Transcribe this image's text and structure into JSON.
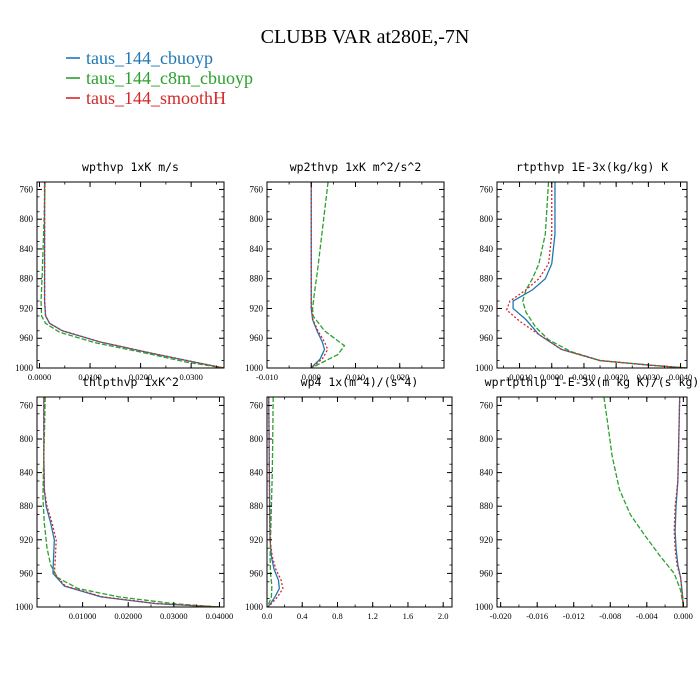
{
  "title": "CLUBB VAR at280E,-7N",
  "legend": [
    {
      "label": "taus_144_cbuoyp",
      "color": "#1f77b4"
    },
    {
      "label": "taus_144_c8m_cbuoyp",
      "color": "#2ca02c"
    },
    {
      "label": "taus_144_smoothH",
      "color": "#d62728"
    }
  ],
  "chart_data": [
    {
      "type": "line",
      "title": "wpthvp  1xK m/s",
      "xlim": [
        -0.0005,
        0.0365
      ],
      "ylim": [
        1000,
        750
      ],
      "xticks": [
        0.0,
        0.01,
        0.02,
        0.03
      ],
      "xtick_labels": [
        "0.0000",
        "0.0100",
        "0.0200",
        "0.0300"
      ],
      "yticks": [
        760,
        800,
        840,
        880,
        920,
        960,
        1000
      ],
      "ytick_labels": [
        "760",
        "800",
        "840",
        "880",
        "920",
        "960",
        "1000"
      ],
      "series": [
        {
          "name": "taus_144_cbuoyp",
          "x": [
            0.001,
            0.001,
            0.001,
            0.001,
            0.001,
            0.0012,
            0.002,
            0.0045,
            0.012,
            0.022,
            0.0305,
            0.0365
          ],
          "y": [
            750,
            800,
            840,
            880,
            910,
            930,
            940,
            950,
            965,
            980,
            992,
            1000
          ]
        },
        {
          "name": "taus_144_c8m_cbuoyp",
          "x": [
            0.0011,
            0.0009,
            0.0007,
            0.0005,
            0.0003,
            0.0004,
            0.0012,
            0.004,
            0.011,
            0.021,
            0.029,
            0.0365
          ],
          "y": [
            750,
            800,
            840,
            880,
            910,
            930,
            940,
            952,
            966,
            980,
            992,
            1000
          ]
        },
        {
          "name": "taus_144_smoothH",
          "x": [
            0.001,
            0.001,
            0.001,
            0.001,
            0.001,
            0.0012,
            0.002,
            0.0046,
            0.012,
            0.0222,
            0.0307,
            0.0365
          ],
          "y": [
            750,
            800,
            840,
            880,
            910,
            930,
            940,
            950,
            965,
            980,
            992,
            1000
          ]
        }
      ]
    },
    {
      "type": "line",
      "title": "wp2thvp  1xK m^2/s^2",
      "xlim": [
        -0.01,
        0.03
      ],
      "ylim": [
        1000,
        750
      ],
      "xticks": [
        -0.01,
        0.0,
        0.01,
        0.02
      ],
      "xtick_labels": [
        "-0.010",
        "0.000",
        "0.010",
        "0.020"
      ],
      "yticks": [
        760,
        800,
        840,
        880,
        920,
        960,
        1000
      ],
      "ytick_labels": [
        "760",
        "800",
        "840",
        "880",
        "920",
        "960",
        "1000"
      ],
      "series": [
        {
          "name": "taus_144_cbuoyp",
          "x": [
            0.0,
            0.0,
            0.0,
            0.0,
            0.0003,
            0.0013,
            0.0025,
            0.003,
            0.002,
            0.0006,
            0.0
          ],
          "y": [
            750,
            850,
            900,
            920,
            935,
            950,
            965,
            975,
            988,
            996,
            1000
          ]
        },
        {
          "name": "taus_144_c8m_cbuoyp",
          "x": [
            0.0038,
            0.003,
            0.0022,
            0.0014,
            0.0007,
            0.0003,
            0.0004,
            0.003,
            0.0075,
            0.006,
            0.002,
            0.0
          ],
          "y": [
            750,
            790,
            830,
            870,
            900,
            920,
            930,
            950,
            970,
            982,
            994,
            1000
          ]
        },
        {
          "name": "taus_144_smoothH",
          "x": [
            0.0,
            0.0,
            0.0,
            0.0,
            0.0004,
            0.0015,
            0.003,
            0.0037,
            0.0025,
            0.0008,
            0.0
          ],
          "y": [
            750,
            850,
            900,
            920,
            935,
            950,
            965,
            975,
            988,
            996,
            1000
          ]
        }
      ]
    },
    {
      "type": "line",
      "title": "rtpthvp  1E-3x(kg/kg) K",
      "xlim": [
        -0.0017,
        0.0042
      ],
      "ylim": [
        1000,
        750
      ],
      "xticks": [
        -0.001,
        0.0,
        0.001,
        0.002,
        0.003,
        0.004
      ],
      "xtick_labels": [
        "-0.0010",
        "0.0000",
        "0.0010",
        "0.0020",
        "0.0030",
        "0.0040"
      ],
      "yticks": [
        760,
        800,
        840,
        880,
        920,
        960,
        1000
      ],
      "ytick_labels": [
        "760",
        "800",
        "840",
        "880",
        "920",
        "960",
        "1000"
      ],
      "series": [
        {
          "name": "taus_144_cbuoyp",
          "x": [
            0.0001,
            0.0001,
            0.0,
            -0.0002,
            -0.0006,
            -0.0012,
            -0.0012,
            -0.0008,
            -0.0004,
            0.0003,
            0.0015,
            0.003,
            0.0042
          ],
          "y": [
            750,
            820,
            860,
            880,
            895,
            910,
            920,
            935,
            955,
            975,
            990,
            996,
            1000
          ]
        },
        {
          "name": "taus_144_c8m_cbuoyp",
          "x": [
            -0.0001,
            -0.0002,
            -0.0004,
            -0.0006,
            -0.0008,
            -0.0009,
            -0.0008,
            -0.0005,
            -0.0001,
            0.0006,
            0.0015,
            0.003,
            0.0042
          ],
          "y": [
            750,
            820,
            860,
            880,
            895,
            910,
            925,
            945,
            962,
            978,
            990,
            996,
            1000
          ]
        },
        {
          "name": "taus_144_smoothH",
          "x": [
            0.0,
            0.0,
            -0.0001,
            -0.0004,
            -0.0008,
            -0.0013,
            -0.0014,
            -0.001,
            -0.0004,
            0.0003,
            0.0015,
            0.003,
            0.0042
          ],
          "y": [
            750,
            820,
            860,
            880,
            895,
            910,
            922,
            937,
            955,
            975,
            990,
            996,
            1000
          ]
        }
      ]
    },
    {
      "type": "line",
      "title": "thlpthvp  1xK^2",
      "xlim": [
        0.0,
        0.041
      ],
      "ylim": [
        1000,
        750
      ],
      "xticks": [
        0.01,
        0.02,
        0.03,
        0.04
      ],
      "xtick_labels": [
        "0.01000",
        "0.02000",
        "0.03000",
        "0.04000"
      ],
      "yticks": [
        760,
        800,
        840,
        880,
        920,
        960,
        1000
      ],
      "ytick_labels": [
        "760",
        "800",
        "840",
        "880",
        "920",
        "960",
        "1000"
      ],
      "series": [
        {
          "name": "taus_144_cbuoyp",
          "x": [
            0.0015,
            0.0015,
            0.0016,
            0.002,
            0.003,
            0.0038,
            0.0036,
            0.0035,
            0.006,
            0.014,
            0.026,
            0.04
          ],
          "y": [
            750,
            820,
            860,
            880,
            900,
            920,
            945,
            960,
            975,
            988,
            996,
            1000
          ]
        },
        {
          "name": "taus_144_c8m_cbuoyp",
          "x": [
            0.0018,
            0.0016,
            0.0014,
            0.0013,
            0.0016,
            0.0022,
            0.003,
            0.0045,
            0.009,
            0.018,
            0.03,
            0.04
          ],
          "y": [
            750,
            800,
            840,
            870,
            900,
            930,
            950,
            965,
            978,
            988,
            996,
            1000
          ]
        },
        {
          "name": "taus_144_smoothH",
          "x": [
            0.0015,
            0.0015,
            0.0016,
            0.0022,
            0.0033,
            0.0042,
            0.004,
            0.0038,
            0.0062,
            0.0145,
            0.0265,
            0.04
          ],
          "y": [
            750,
            820,
            860,
            880,
            900,
            920,
            945,
            960,
            975,
            988,
            996,
            1000
          ]
        }
      ]
    },
    {
      "type": "line",
      "title": "wp4  1x(m^4)/(s^4)",
      "xlim": [
        0.0,
        2.1
      ],
      "ylim": [
        1000,
        750
      ],
      "xticks": [
        0.0,
        0.4,
        0.8,
        1.2,
        1.6,
        2.0
      ],
      "xtick_labels": [
        "0.0",
        "0.4",
        "0.8",
        "1.2",
        "1.6",
        "2.0"
      ],
      "yticks": [
        760,
        800,
        840,
        880,
        920,
        960,
        1000
      ],
      "ytick_labels": [
        "760",
        "800",
        "840",
        "880",
        "920",
        "960",
        "1000"
      ],
      "series": [
        {
          "name": "taus_144_cbuoyp",
          "x": [
            0.02,
            0.025,
            0.03,
            0.035,
            0.05,
            0.08,
            0.13,
            0.14,
            0.09,
            0.04,
            0.01
          ],
          "y": [
            750,
            820,
            880,
            920,
            940,
            955,
            968,
            978,
            988,
            996,
            1000
          ]
        },
        {
          "name": "taus_144_c8m_cbuoyp",
          "x": [
            0.07,
            0.065,
            0.06,
            0.05,
            0.04,
            0.035,
            0.04,
            0.055,
            0.05,
            0.02,
            0.005
          ],
          "y": [
            750,
            800,
            840,
            880,
            920,
            940,
            960,
            975,
            988,
            996,
            1000
          ]
        },
        {
          "name": "taus_144_smoothH",
          "x": [
            0.02,
            0.025,
            0.03,
            0.035,
            0.06,
            0.1,
            0.16,
            0.18,
            0.12,
            0.05,
            0.01
          ],
          "y": [
            750,
            820,
            880,
            920,
            940,
            955,
            968,
            978,
            988,
            996,
            1000
          ]
        }
      ]
    },
    {
      "type": "line",
      "title": "wprtpthlp  1-E-3x(m kg K)/(s kg)",
      "xlim": [
        -0.0204,
        0.0004
      ],
      "ylim": [
        1000,
        750
      ],
      "xticks": [
        -0.02,
        -0.016,
        -0.012,
        -0.008,
        -0.004,
        0.0
      ],
      "xtick_labels": [
        "-0.020",
        "-0.016",
        "-0.012",
        "-0.008",
        "-0.004",
        "0.000"
      ],
      "yticks": [
        760,
        800,
        840,
        880,
        920,
        960,
        1000
      ],
      "ytick_labels": [
        "760",
        "800",
        "840",
        "880",
        "920",
        "960",
        "1000"
      ],
      "series": [
        {
          "name": "taus_144_cbuoyp",
          "x": [
            -0.0004,
            -0.0005,
            -0.0006,
            -0.0008,
            -0.0009,
            -0.0008,
            -0.0006,
            -0.0003,
            -0.0001,
            0.0
          ],
          "y": [
            750,
            800,
            850,
            880,
            910,
            930,
            950,
            965,
            985,
            1000
          ]
        },
        {
          "name": "taus_144_c8m_cbuoyp",
          "x": [
            -0.0087,
            -0.0083,
            -0.0078,
            -0.007,
            -0.0058,
            -0.0042,
            -0.0025,
            -0.001,
            -0.0003,
            0.0
          ],
          "y": [
            750,
            780,
            820,
            860,
            890,
            915,
            940,
            960,
            980,
            1000
          ]
        },
        {
          "name": "taus_144_smoothH",
          "x": [
            -0.0004,
            -0.0005,
            -0.0006,
            -0.0009,
            -0.001,
            -0.0009,
            -0.0007,
            -0.0003,
            -0.0001,
            0.0
          ],
          "y": [
            750,
            800,
            850,
            880,
            910,
            930,
            950,
            965,
            985,
            1000
          ]
        }
      ]
    }
  ]
}
